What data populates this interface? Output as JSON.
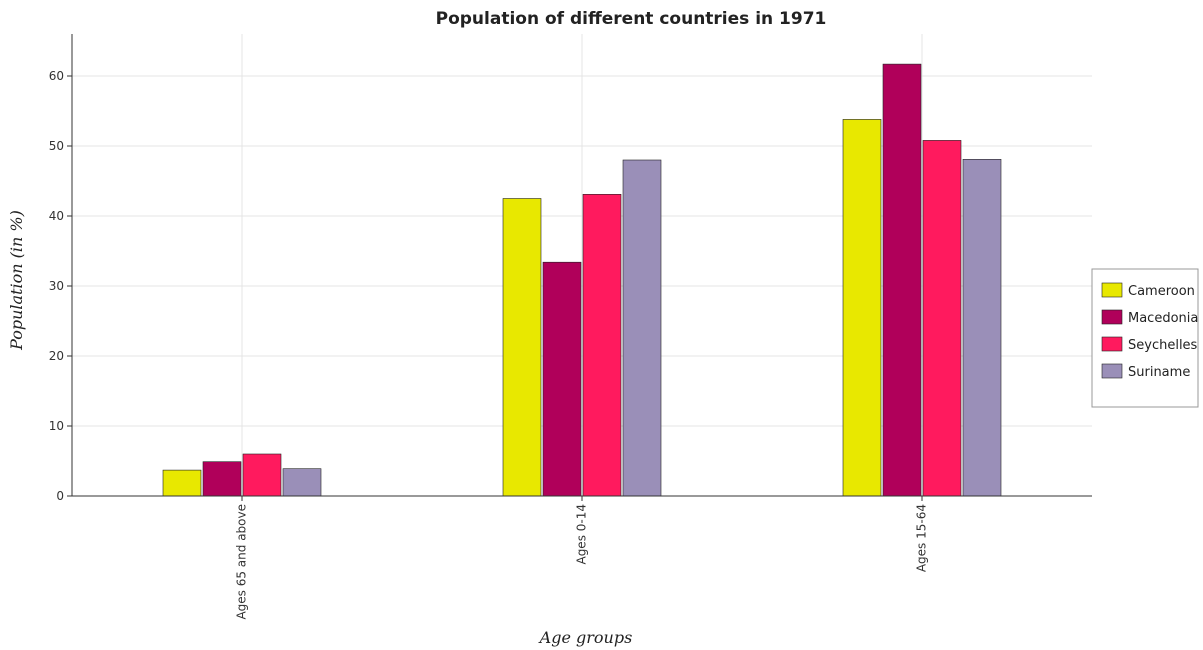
{
  "chart_data": {
    "type": "bar",
    "title": "Population of different countries in 1971",
    "xlabel": "Age groups",
    "ylabel": "Population (in %)",
    "categories": [
      "Ages 65 and above",
      "Ages 0-14",
      "Ages 15-64"
    ],
    "ylim": [
      0,
      66
    ],
    "yticks": [
      0,
      10,
      20,
      30,
      40,
      50,
      60
    ],
    "grid": true,
    "legend_position": "right",
    "series": [
      {
        "name": "Cameroon",
        "color": "#e8e800",
        "values": [
          3.7,
          42.5,
          53.8
        ]
      },
      {
        "name": "Macedonia",
        "color": "#b0005a",
        "values": [
          4.9,
          33.4,
          61.7
        ]
      },
      {
        "name": "Seychelles",
        "color": "#ff1a5e",
        "values": [
          6.0,
          43.1,
          50.8
        ]
      },
      {
        "name": "Suriname",
        "color": "#9a8fb8",
        "values": [
          3.9,
          48.0,
          48.1
        ]
      }
    ]
  }
}
